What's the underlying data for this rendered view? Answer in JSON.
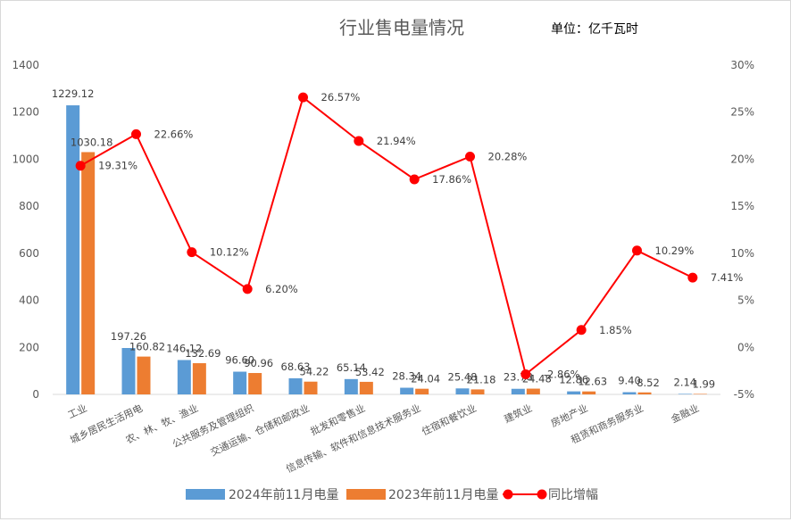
{
  "chart_data": {
    "type": "bar",
    "title": "行业售电量情况",
    "unit_note": "单位：亿千瓦时",
    "categories": [
      "工业",
      "城乡居民生活用电",
      "农、林、牧、渔业",
      "公共服务及管理组织",
      "交通运输、仓储和邮政业",
      "批发和零售业",
      "信息传输、软件和信息技术服务业",
      "住宿和餐饮业",
      "建筑业",
      "房地产业",
      "租赁和商务服务业",
      "金融业"
    ],
    "series": [
      {
        "name": "2024年前11月电量",
        "type": "bar",
        "axis": "left",
        "color": "#5b9bd5",
        "values": [
          1229.12,
          197.26,
          146.12,
          96.6,
          68.63,
          65.14,
          28.34,
          25.48,
          23.78,
          12.86,
          9.4,
          2.14
        ],
        "labels": [
          "1229.12",
          "197.26",
          "146.12",
          "96.60",
          "68.63",
          "65.14",
          "28.34",
          "25.48",
          "23.78",
          "12.86",
          "9.40",
          "2.14"
        ]
      },
      {
        "name": "2023年前11月电量",
        "type": "bar",
        "axis": "left",
        "color": "#ed7d31",
        "values": [
          1030.18,
          160.82,
          132.69,
          90.96,
          54.22,
          53.42,
          24.04,
          21.18,
          24.48,
          12.63,
          8.52,
          1.99
        ],
        "labels": [
          "1030.18",
          "160.82",
          "132.69",
          "90.96",
          "54.22",
          "53.42",
          "24.04",
          "21.18",
          "24.48",
          "12.63",
          "8.52",
          "1.99"
        ]
      },
      {
        "name": "同比增幅",
        "type": "line",
        "axis": "right",
        "color": "#ff0000",
        "values": [
          19.31,
          22.66,
          10.12,
          6.2,
          26.57,
          21.94,
          17.86,
          20.28,
          -2.86,
          1.85,
          10.29,
          7.41
        ],
        "labels": [
          "19.31%",
          "22.66%",
          "10.12%",
          "6.20%",
          "26.57%",
          "21.94%",
          "17.86%",
          "20.28%",
          "-2.86%",
          "1.85%",
          "10.29%",
          "7.41%"
        ]
      }
    ],
    "y_left": {
      "min": 0,
      "max": 1400,
      "ticks": [
        "0",
        "200",
        "400",
        "600",
        "800",
        "1000",
        "1200",
        "1400"
      ]
    },
    "y_right": {
      "min": -5,
      "max": 30,
      "ticks": [
        "-5%",
        "0%",
        "5%",
        "10%",
        "15%",
        "20%",
        "25%",
        "30%"
      ]
    },
    "grid": false,
    "legend_position": "bottom"
  }
}
